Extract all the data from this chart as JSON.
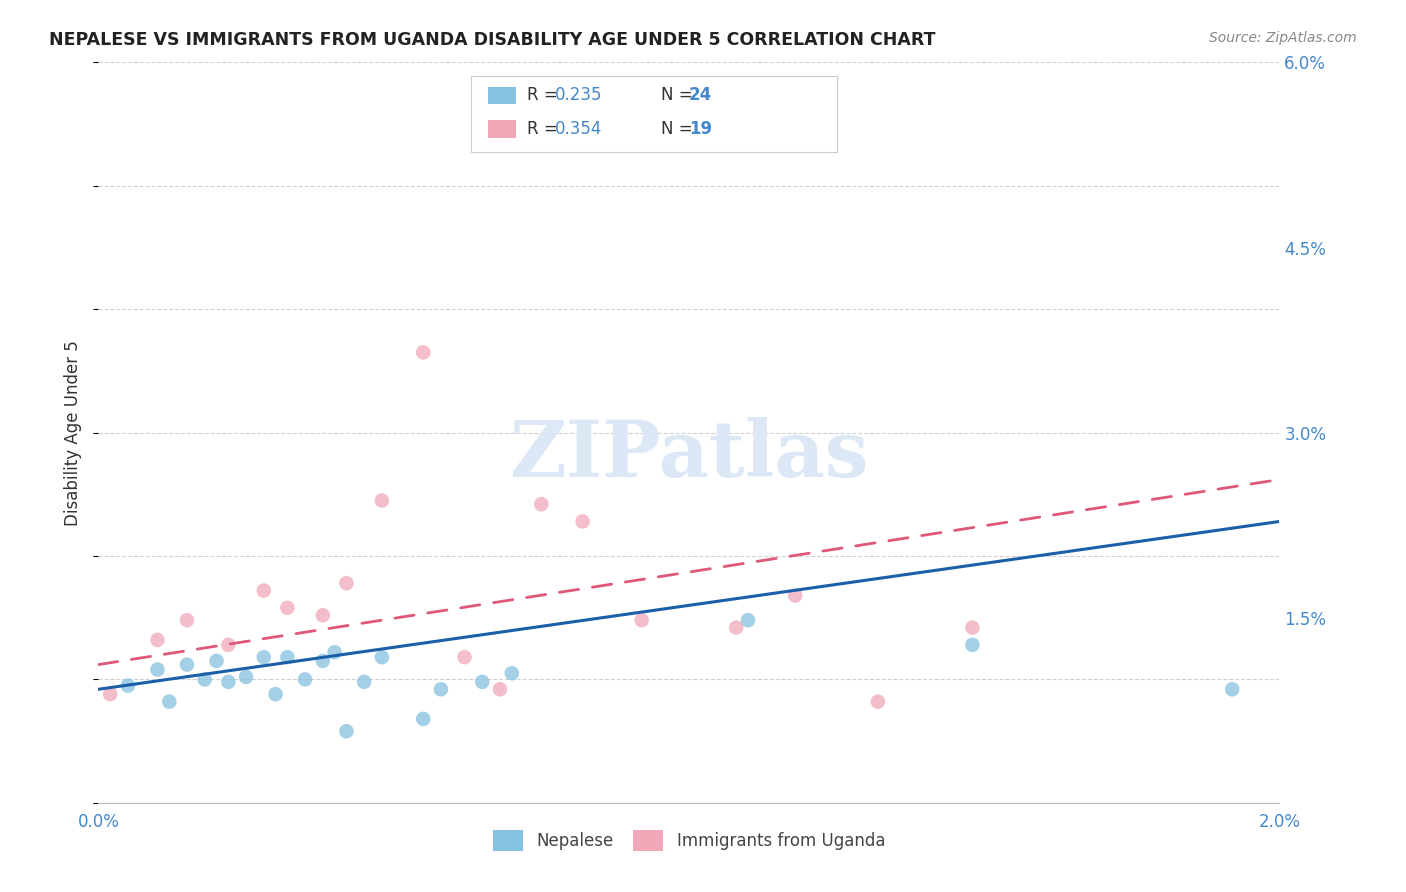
{
  "title": "NEPALESE VS IMMIGRANTS FROM UGANDA DISABILITY AGE UNDER 5 CORRELATION CHART",
  "source": "Source: ZipAtlas.com",
  "ylabel": "Disability Age Under 5",
  "right_yticks": [
    0.0,
    0.015,
    0.03,
    0.045,
    0.06
  ],
  "right_yticklabels": [
    "",
    "1.5%",
    "3.0%",
    "4.5%",
    "6.0%"
  ],
  "xmin": 0.0,
  "xmax": 0.02,
  "ymin": 0.0,
  "ymax": 0.06,
  "legend_r1": "R = 0.235",
  "legend_n1": "N = 24",
  "legend_r2": "R = 0.354",
  "legend_n2": "N = 19",
  "nepalese_x": [
    0.0005,
    0.001,
    0.0012,
    0.0015,
    0.0018,
    0.002,
    0.0022,
    0.0025,
    0.0028,
    0.003,
    0.0032,
    0.0035,
    0.0038,
    0.004,
    0.0042,
    0.0045,
    0.0048,
    0.0055,
    0.0058,
    0.0065,
    0.007,
    0.011,
    0.0148,
    0.0192
  ],
  "nepalese_y": [
    0.0095,
    0.0108,
    0.0082,
    0.0112,
    0.01,
    0.0115,
    0.0098,
    0.0102,
    0.0118,
    0.0088,
    0.0118,
    0.01,
    0.0115,
    0.0122,
    0.0058,
    0.0098,
    0.0118,
    0.0068,
    0.0092,
    0.0098,
    0.0105,
    0.0148,
    0.0128,
    0.0092
  ],
  "uganda_x": [
    0.0002,
    0.001,
    0.0015,
    0.0022,
    0.0028,
    0.0032,
    0.0038,
    0.0042,
    0.0048,
    0.0055,
    0.0062,
    0.0068,
    0.0075,
    0.0082,
    0.0092,
    0.0108,
    0.0118,
    0.0132,
    0.0148
  ],
  "uganda_y": [
    0.0088,
    0.0132,
    0.0148,
    0.0128,
    0.0172,
    0.0158,
    0.0152,
    0.0178,
    0.0245,
    0.0365,
    0.0118,
    0.0092,
    0.0242,
    0.0228,
    0.0148,
    0.0142,
    0.0168,
    0.0082,
    0.0142
  ],
  "nepalese_color": "#85c1e0",
  "uganda_color": "#f0a8b8",
  "nepalese_line_color": "#1a5fa8",
  "uganda_line_color": "#e05878",
  "background_color": "#ffffff",
  "grid_color": "#cccccc",
  "title_color": "#222222",
  "axis_color": "#4488cc",
  "watermark_color": "#dce8f5",
  "nepalese_trend_x": [
    0.0,
    0.02
  ],
  "nepalese_trend_y": [
    0.0092,
    0.0228
  ],
  "uganda_trend_x": [
    0.0,
    0.02
  ],
  "uganda_trend_y": [
    0.0112,
    0.0262
  ]
}
